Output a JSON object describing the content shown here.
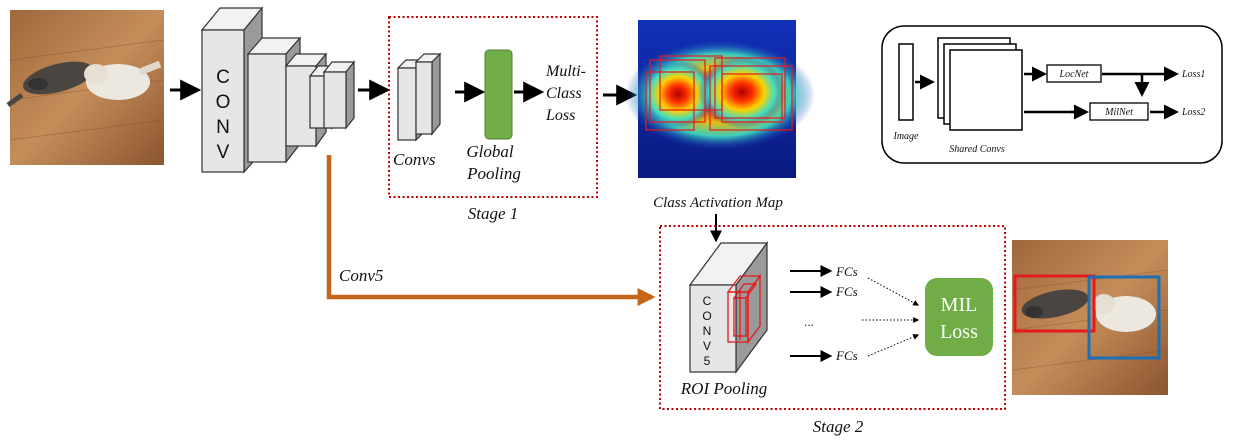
{
  "backbone": {
    "conv_label": [
      "C",
      "O",
      "N",
      "V"
    ]
  },
  "stage1": {
    "convs_label": "Convs",
    "pooling_label": [
      "Global",
      "Pooling"
    ],
    "loss_label": [
      "Multi-",
      "Class",
      "Loss"
    ],
    "caption": "Stage 1"
  },
  "cam_label": "Class Activation Map",
  "conv5_label": "Conv5",
  "stage2": {
    "conv5_letters": [
      "C",
      "O",
      "N",
      "V",
      "5"
    ],
    "roi_label": "ROI Pooling",
    "fc_labels": [
      "FCs",
      "FCs",
      "FCs"
    ],
    "ellipsis": "...",
    "mil_loss_label": [
      "MIL",
      "Loss"
    ],
    "caption": "Stage 2"
  },
  "inset": {
    "image_label": "Image",
    "shared_label": "Shared Convs",
    "locnet_label": "LocNet",
    "milnet_label": "MilNet",
    "loss1_label": "Loss1",
    "loss2_label": "Loss2"
  },
  "colors": {
    "orange_arrow": "#c5651c",
    "mil_green": "#70ad47",
    "pool_green": "#70ad47",
    "dotted_red": "#c00000",
    "box_red": "#e41a1c",
    "box_blue": "#1f6fb5"
  }
}
